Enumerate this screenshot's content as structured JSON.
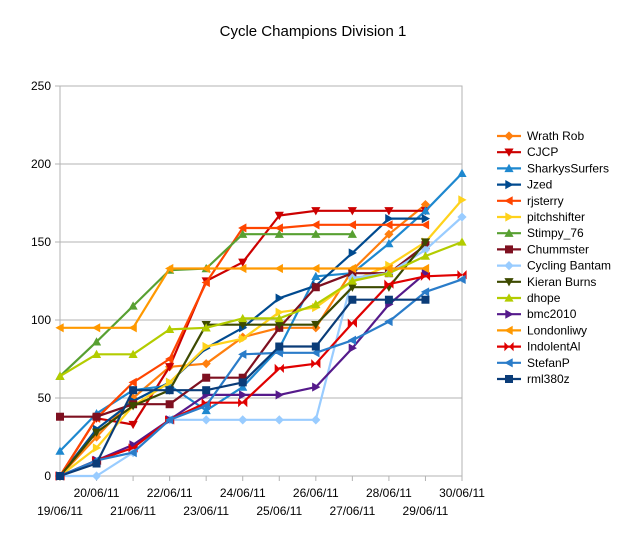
{
  "chart_data": {
    "type": "line",
    "title": "Cycle Champions Division 1",
    "xlabel": "",
    "ylabel": "",
    "ylim": [
      0,
      250
    ],
    "yticks": [
      0,
      50,
      100,
      150,
      200,
      250
    ],
    "grid": true,
    "legend_position": "right",
    "x": [
      "19/06/11",
      "20/06/11",
      "21/06/11",
      "22/06/11",
      "23/06/11",
      "24/06/11",
      "25/06/11",
      "26/06/11",
      "27/06/11",
      "28/06/11",
      "29/06/11",
      "30/06/11"
    ],
    "series": [
      {
        "name": "Wrath Rob",
        "color": "#ff7f0e",
        "marker": "diamond",
        "values": [
          0,
          25,
          50,
          70,
          72,
          89,
          95,
          95,
          132,
          155,
          174,
          null
        ]
      },
      {
        "name": "CJCP",
        "color": "#cc0000",
        "marker": "triangle-down",
        "values": [
          0,
          37,
          33,
          70,
          125,
          137,
          167,
          170,
          170,
          170,
          170,
          null
        ]
      },
      {
        "name": "SharkysSurfers",
        "color": "#1e88cf",
        "marker": "triangle",
        "values": [
          16,
          40,
          55,
          58,
          42,
          57,
          82,
          128,
          130,
          149,
          170,
          194
        ]
      },
      {
        "name": "Jzed",
        "color": "#004a8f",
        "marker": "triangle-right",
        "values": [
          0,
          30,
          48,
          60,
          82,
          95,
          114,
          122,
          143,
          165,
          165,
          null
        ]
      },
      {
        "name": "rjsterry",
        "color": "#ff4500",
        "marker": "triangle-left",
        "values": [
          0,
          37,
          60,
          75,
          124,
          159,
          159,
          161,
          161,
          161,
          161,
          null
        ]
      },
      {
        "name": "pitchshifter",
        "color": "#ffd21c",
        "marker": "triangle-right",
        "values": [
          0,
          18,
          45,
          60,
          83,
          88,
          105,
          108,
          125,
          135,
          150,
          177
        ]
      },
      {
        "name": "Stimpy_76",
        "color": "#58a032",
        "marker": "triangle",
        "values": [
          64,
          86,
          109,
          132,
          133,
          155,
          155,
          155,
          155,
          null,
          null,
          null
        ]
      },
      {
        "name": "Chummster",
        "color": "#7e1020",
        "marker": "square",
        "values": [
          38,
          38,
          46,
          46,
          63,
          63,
          95,
          121,
          130,
          130,
          148,
          null
        ]
      },
      {
        "name": "Cycling Bantam",
        "color": "#99ccff",
        "marker": "diamond",
        "values": [
          0,
          0,
          15,
          36,
          36,
          36,
          36,
          36,
          127,
          130,
          145,
          166
        ]
      },
      {
        "name": "Kieran Burns",
        "color": "#3d4a00",
        "marker": "triangle-down",
        "values": [
          0,
          28,
          45,
          55,
          97,
          97,
          97,
          97,
          121,
          121,
          150,
          null
        ]
      },
      {
        "name": "dhope",
        "color": "#b3cc00",
        "marker": "triangle",
        "values": [
          64,
          78,
          78,
          94,
          95,
          101,
          101,
          110,
          125,
          130,
          141,
          150
        ]
      },
      {
        "name": "bmc2010",
        "color": "#551a8b",
        "marker": "triangle-right",
        "values": [
          0,
          10,
          20,
          36,
          52,
          52,
          52,
          57,
          82,
          110,
          130,
          null
        ]
      },
      {
        "name": "Londonliwy",
        "color": "#ff9900",
        "marker": "triangle-left",
        "values": [
          95,
          95,
          95,
          133,
          133,
          133,
          133,
          133,
          133,
          133,
          133,
          null
        ]
      },
      {
        "name": "IndolentAl",
        "color": "#e00000",
        "marker": "bowtie",
        "values": [
          0,
          10,
          18,
          36,
          47,
          47,
          69,
          72,
          98,
          123,
          128,
          129
        ]
      },
      {
        "name": "StefanP",
        "color": "#2a7cc9",
        "marker": "triangle-left",
        "values": [
          0,
          10,
          15,
          36,
          45,
          78,
          79,
          79,
          87,
          99,
          118,
          126
        ]
      },
      {
        "name": "rml380z",
        "color": "#0a3c78",
        "marker": "square",
        "values": [
          0,
          8,
          55,
          55,
          55,
          60,
          83,
          83,
          113,
          113,
          113,
          null
        ]
      }
    ]
  }
}
